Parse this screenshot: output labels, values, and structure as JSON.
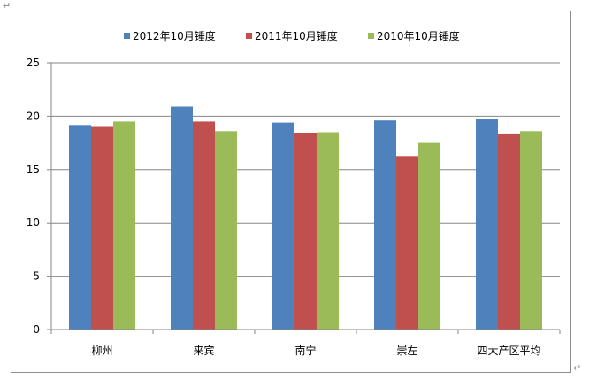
{
  "chart_data": {
    "type": "bar",
    "categories": [
      "柳州",
      "来宾",
      "南宁",
      "崇左",
      "四大产区平均"
    ],
    "series": [
      {
        "name": "2012年10月锤度",
        "color": "#4F81BD",
        "values": [
          19.1,
          20.9,
          19.4,
          19.6,
          19.7
        ]
      },
      {
        "name": "2011年10月锤度",
        "color": "#C0504D",
        "values": [
          19.0,
          19.5,
          18.4,
          16.2,
          18.3
        ]
      },
      {
        "name": "2010年10月锤度",
        "color": "#9BBB59",
        "values": [
          19.5,
          18.6,
          18.5,
          17.5,
          18.6
        ]
      }
    ],
    "yticks": [
      "0",
      "5",
      "10",
      "15",
      "20",
      "25"
    ],
    "ylim": [
      0,
      25
    ],
    "grid": true,
    "legend_position": "top",
    "title": "",
    "xlabel": "",
    "ylabel": ""
  },
  "editor_marks": {
    "return_mark": "↵"
  }
}
